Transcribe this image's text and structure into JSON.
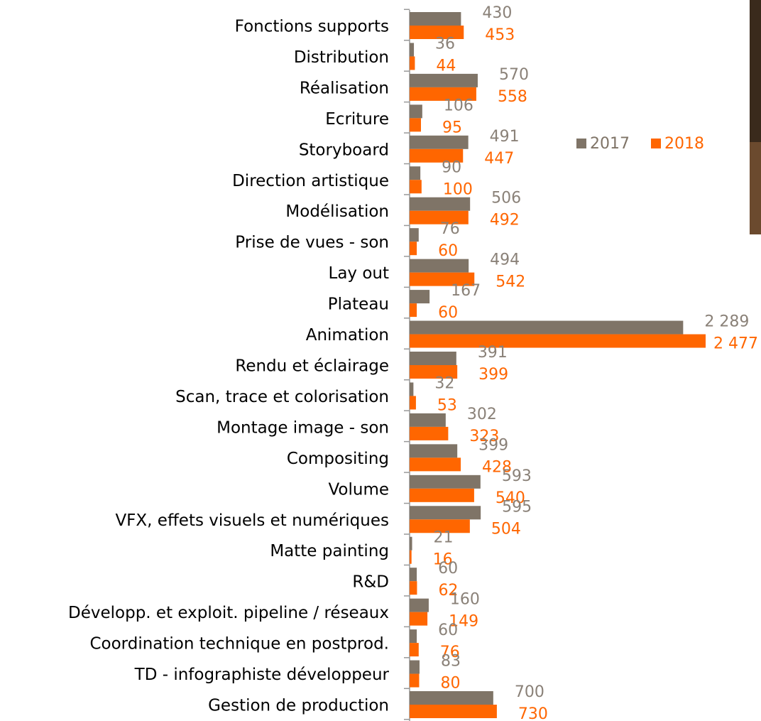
{
  "chart_data": {
    "type": "hbar",
    "categories": [
      "Fonctions supports",
      "Distribution",
      "Réalisation",
      "Ecriture",
      "Storyboard",
      "Direction artistique",
      "Modélisation",
      "Prise de vues - son",
      "Lay out",
      "Plateau",
      "Animation",
      "Rendu et éclairage",
      "Scan, trace et colorisation",
      "Montage image - son",
      "Compositing",
      "Volume",
      "VFX, effets visuels et numériques",
      "Matte painting",
      "R&D",
      "Développ. et exploit. pipeline / réseaux",
      "Coordination technique en postprod.",
      "TD - infographiste développeur",
      "Gestion de production"
    ],
    "series": [
      {
        "name": "2017",
        "color": "#7f7467",
        "label_color": "#8a8178",
        "values": [
          430,
          36,
          570,
          106,
          491,
          90,
          506,
          76,
          494,
          167,
          2289,
          391,
          32,
          302,
          399,
          593,
          595,
          21,
          60,
          160,
          60,
          83,
          700
        ],
        "value_labels": [
          "430",
          "36",
          "570",
          "106",
          "491",
          "90",
          "506",
          "76",
          "494",
          "167",
          "2 289",
          "391",
          "32",
          "302",
          "399",
          "593",
          "595",
          "21",
          "60",
          "160",
          "60",
          "83",
          "700"
        ]
      },
      {
        "name": "2018",
        "color": "#ff6600",
        "label_color": "#ff6600",
        "values": [
          453,
          44,
          558,
          95,
          447,
          100,
          492,
          60,
          542,
          60,
          2477,
          399,
          53,
          323,
          428,
          540,
          504,
          16,
          62,
          149,
          76,
          80,
          730
        ],
        "value_labels": [
          "453",
          "44",
          "558",
          "95",
          "447",
          "100",
          "492",
          "60",
          "542",
          "60",
          "2 477",
          "399",
          "53",
          "323",
          "428",
          "540",
          "504",
          "16",
          "62",
          "149",
          "76",
          "80",
          "730"
        ]
      }
    ],
    "legend": "right"
  }
}
